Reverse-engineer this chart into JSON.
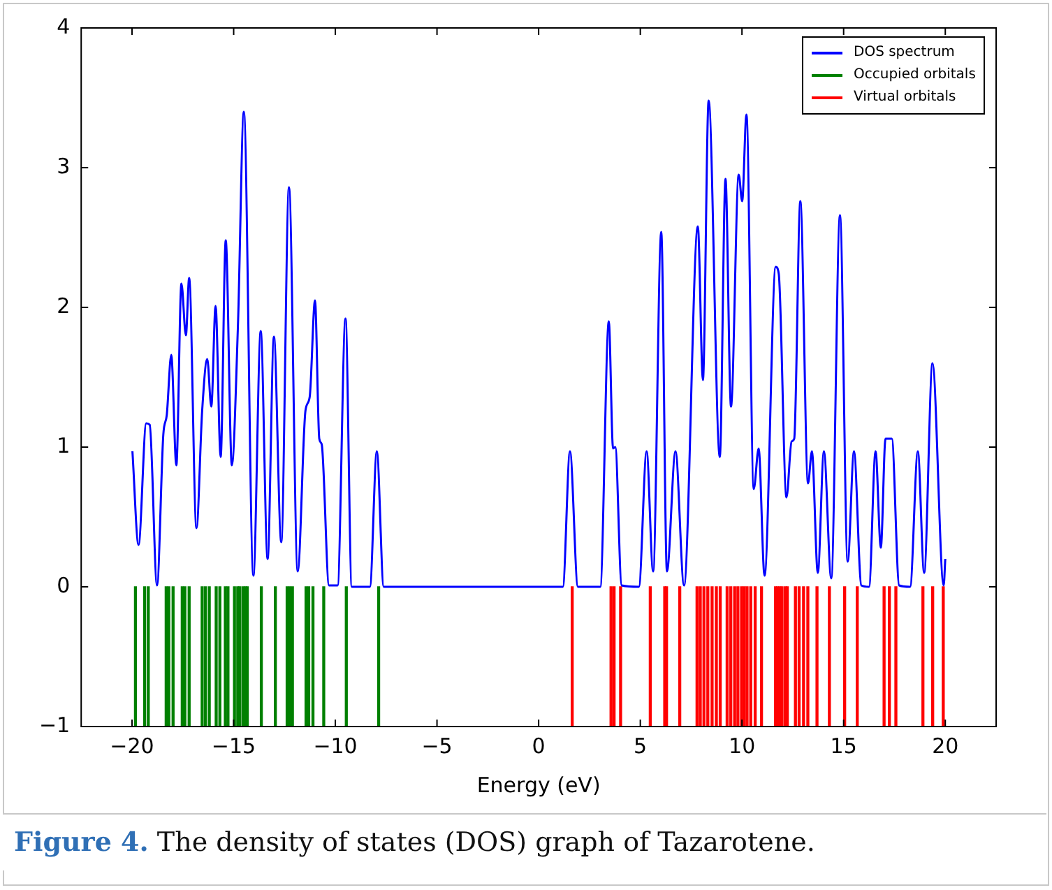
{
  "chart_data": {
    "type": "line",
    "xlabel": "Energy (eV)",
    "xlim": [
      -20,
      20
    ],
    "xticks": [
      -20,
      -15,
      -10,
      -5,
      0,
      5,
      10,
      15,
      20
    ],
    "ylim": [
      -1,
      4
    ],
    "yticks": [
      -1,
      0,
      1,
      2,
      3,
      4
    ],
    "grid": false,
    "legend": "top right",
    "marker": "none",
    "line_style": "solid",
    "annotations": [
      "Figure 4.",
      "The density of states (DOS) graph of Tazarotene."
    ],
    "series": [
      {
        "name": "DOS spectrum",
        "color": "#0000ff",
        "x": [
          -19.98,
          -19.68,
          -19.3,
          -19.13,
          -18.77,
          -18.46,
          -18.29,
          -18.07,
          -17.82,
          -17.57,
          -17.35,
          -17.19,
          -16.83,
          -16.55,
          -16.3,
          -16.1,
          -15.89,
          -15.64,
          -15.39,
          -15.09,
          -14.79,
          -14.5,
          -14.03,
          -13.67,
          -13.33,
          -13.02,
          -12.66,
          -12.28,
          -11.85,
          -11.47,
          -11.26,
          -11.0,
          -10.79,
          -10.67,
          -10.31,
          -9.89,
          -9.5,
          -9.19,
          -8.3,
          -7.96,
          -7.62,
          1.19,
          1.54,
          1.93,
          3.03,
          3.45,
          3.66,
          3.77,
          4.08,
          4.93,
          5.31,
          5.63,
          6.03,
          6.31,
          6.73,
          7.15,
          7.83,
          8.08,
          8.36,
          8.91,
          9.19,
          9.46,
          9.84,
          10.01,
          10.22,
          10.58,
          10.82,
          11.11,
          11.66,
          11.81,
          12.19,
          12.44,
          12.57,
          12.87,
          13.25,
          13.44,
          13.73,
          14.03,
          14.39,
          14.82,
          15.2,
          15.51,
          15.87,
          16.25,
          16.57,
          16.83,
          17.06,
          17.37,
          17.73,
          18.27,
          18.65,
          18.96,
          19.37,
          19.92,
          20.0
        ],
        "values": [
          0.97,
          0.3,
          1.17,
          1.16,
          0.01,
          1.09,
          1.23,
          1.66,
          0.87,
          2.17,
          1.8,
          2.21,
          0.42,
          1.26,
          1.63,
          1.29,
          2.01,
          0.93,
          2.48,
          0.87,
          1.87,
          3.4,
          0.08,
          1.83,
          0.2,
          1.79,
          0.32,
          2.86,
          0.11,
          1.26,
          1.36,
          2.05,
          1.06,
          1.02,
          0.01,
          0.01,
          1.92,
          0.0,
          0.0,
          0.97,
          0.0,
          0.0,
          0.97,
          0.0,
          0.0,
          1.9,
          0.99,
          1.0,
          0.01,
          0.0,
          0.97,
          0.11,
          2.54,
          0.11,
          0.97,
          0.01,
          2.58,
          1.48,
          3.48,
          0.93,
          2.92,
          1.29,
          2.95,
          2.76,
          3.38,
          0.7,
          0.99,
          0.08,
          2.29,
          2.24,
          0.64,
          1.04,
          1.06,
          2.76,
          0.74,
          0.97,
          0.1,
          0.97,
          0.06,
          2.66,
          0.18,
          0.97,
          0.01,
          0.0,
          0.97,
          0.28,
          1.06,
          1.06,
          0.01,
          0.0,
          0.97,
          0.1,
          1.6,
          0.01,
          0.2
        ]
      },
      {
        "name": "Occupied orbitals",
        "type": "bar",
        "color": "#008000",
        "x": [
          -19.83,
          -19.38,
          -19.2,
          -18.32,
          -18.19,
          -17.98,
          -17.53,
          -17.4,
          -17.19,
          -16.55,
          -16.39,
          -16.2,
          -15.86,
          -15.68,
          -15.41,
          -15.28,
          -14.96,
          -14.8,
          -14.7,
          -14.54,
          -14.43,
          -14.33,
          -13.64,
          -12.95,
          -12.37,
          -12.24,
          -12.11,
          -11.44,
          -11.31,
          -11.1,
          -10.57,
          -9.46,
          -7.87
        ],
        "values": [
          -1,
          -1,
          -1,
          -1,
          -1,
          -1,
          -1,
          -1,
          -1,
          -1,
          -1,
          -1,
          -1,
          -1,
          -1,
          -1,
          -1,
          -1,
          -1,
          -1,
          -1,
          -1,
          -1,
          -1,
          -1,
          -1,
          -1,
          -1,
          -1,
          -1,
          -1,
          -1,
          -1
        ]
      },
      {
        "name": "Virtual orbitals",
        "type": "bar",
        "color": "#ff0000",
        "x": [
          1.65,
          3.56,
          3.71,
          4.03,
          5.49,
          6.2,
          6.29,
          6.94,
          7.79,
          7.95,
          8.13,
          8.32,
          8.53,
          8.74,
          8.93,
          9.27,
          9.45,
          9.64,
          9.8,
          9.98,
          10.11,
          10.25,
          10.43,
          10.65,
          10.96,
          11.65,
          11.75,
          11.86,
          11.97,
          12.13,
          12.23,
          12.63,
          12.81,
          13.03,
          13.24,
          13.69,
          14.3,
          15.05,
          15.67,
          16.99,
          17.25,
          17.57,
          18.9,
          19.38,
          19.9
        ],
        "values": [
          -1,
          -1,
          -1,
          -1,
          -1,
          -1,
          -1,
          -1,
          -1,
          -1,
          -1,
          -1,
          -1,
          -1,
          -1,
          -1,
          -1,
          -1,
          -1,
          -1,
          -1,
          -1,
          -1,
          -1,
          -1,
          -1,
          -1,
          -1,
          -1,
          -1,
          -1,
          -1,
          -1,
          -1,
          -1,
          -1,
          -1,
          -1,
          -1,
          -1,
          -1,
          -1,
          -1,
          -1,
          -1
        ]
      }
    ]
  }
}
